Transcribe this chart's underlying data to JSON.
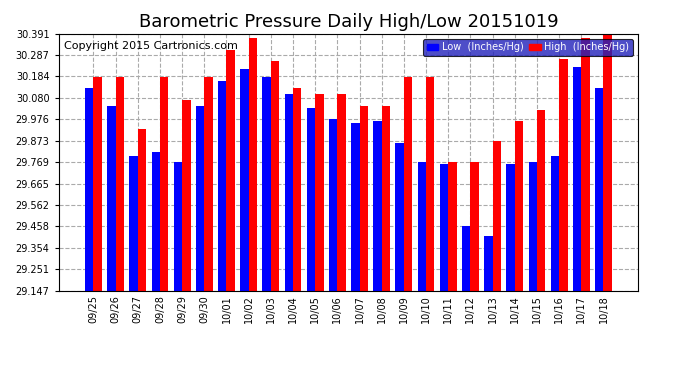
{
  "title": "Barometric Pressure Daily High/Low 20151019",
  "copyright": "Copyright 2015 Cartronics.com",
  "legend_low": "Low  (Inches/Hg)",
  "legend_high": "High  (Inches/Hg)",
  "categories": [
    "09/25",
    "09/26",
    "09/27",
    "09/28",
    "09/29",
    "09/30",
    "10/01",
    "10/02",
    "10/03",
    "10/04",
    "10/05",
    "10/06",
    "10/07",
    "10/08",
    "10/09",
    "10/10",
    "10/11",
    "10/12",
    "10/13",
    "10/14",
    "10/15",
    "10/16",
    "10/17",
    "10/18"
  ],
  "low_values": [
    30.13,
    30.04,
    29.8,
    29.82,
    29.77,
    30.04,
    30.16,
    30.22,
    30.18,
    30.1,
    30.03,
    29.98,
    29.96,
    29.97,
    29.86,
    29.77,
    29.76,
    29.46,
    29.41,
    29.76,
    29.77,
    29.8,
    30.23,
    30.13
  ],
  "high_values": [
    30.18,
    30.18,
    29.93,
    30.18,
    30.07,
    30.18,
    30.31,
    30.37,
    30.26,
    30.13,
    30.1,
    30.1,
    30.04,
    30.04,
    30.18,
    30.18,
    29.77,
    29.77,
    29.87,
    29.97,
    30.02,
    30.27,
    30.37,
    30.39
  ],
  "bar_color_low": "#0000ff",
  "bar_color_high": "#ff0000",
  "ylim_min": 29.147,
  "ylim_max": 30.391,
  "yticks": [
    29.147,
    29.251,
    29.354,
    29.458,
    29.562,
    29.665,
    29.769,
    29.873,
    29.976,
    30.08,
    30.184,
    30.287,
    30.391
  ],
  "background_color": "#ffffff",
  "plot_bg_color": "#ffffff",
  "grid_color": "#aaaaaa",
  "title_fontsize": 13,
  "copyright_fontsize": 8,
  "bar_width": 0.38,
  "base": 29.147
}
